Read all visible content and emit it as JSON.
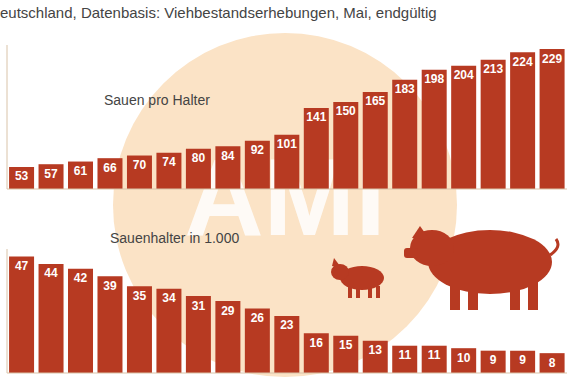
{
  "title": "eutschland, Datenbasis: Viehbestandserhebungen, Mai, endgültig",
  "annotations": [
    "AMI"
  ],
  "chart_data": [
    {
      "type": "bar",
      "title": "Sauen pro Halter",
      "values": [
        53,
        57,
        61,
        66,
        70,
        74,
        80,
        84,
        92,
        101,
        141,
        150,
        165,
        183,
        198,
        204,
        213,
        224,
        229
      ],
      "color": "#b73a22",
      "ylim": [
        20,
        235
      ],
      "data_labels": true,
      "tick_labels": false
    },
    {
      "type": "bar",
      "title": "Sauenhalter in 1.000",
      "values": [
        47,
        44,
        42,
        39,
        35,
        34,
        31,
        29,
        26,
        23,
        16,
        15,
        13,
        11,
        11,
        10,
        9,
        9,
        8
      ],
      "color": "#b73a22",
      "ylim": [
        0,
        50
      ],
      "data_labels": true,
      "tick_labels": false
    }
  ]
}
